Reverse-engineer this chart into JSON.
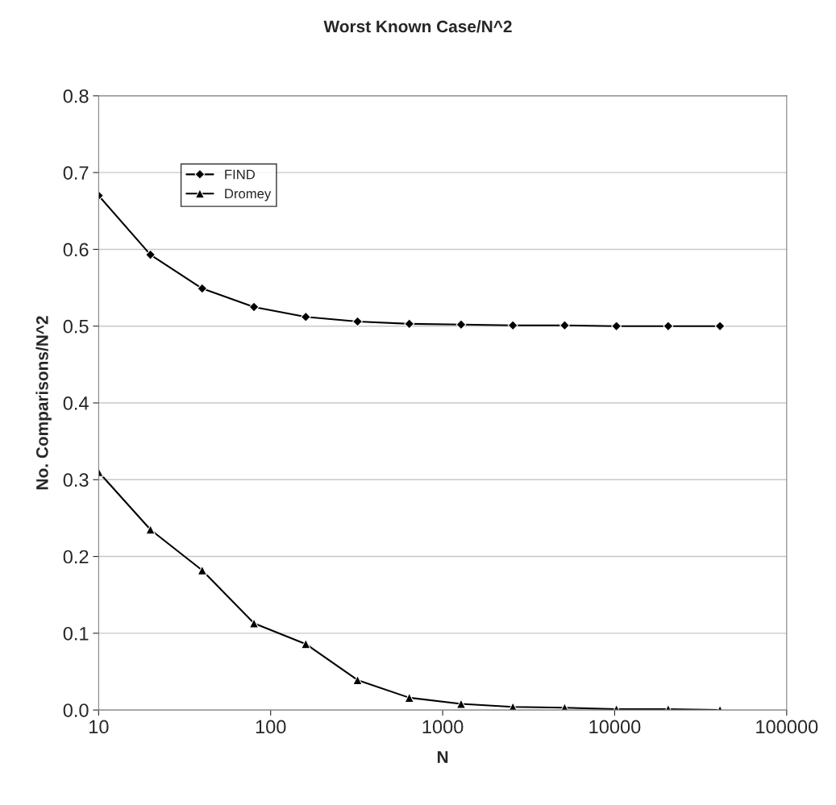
{
  "chart_data": {
    "type": "line",
    "title": "Worst Known Case/N^2",
    "xlabel": "N",
    "ylabel": "No. Comparisons/N^2",
    "x": [
      10,
      20,
      40,
      80,
      160,
      320,
      640,
      1280,
      2560,
      5120,
      10240,
      20480,
      40960
    ],
    "series": [
      {
        "name": "FIND",
        "color": "#000000",
        "marker": "diamond",
        "values": [
          0.67,
          0.593,
          0.549,
          0.525,
          0.512,
          0.506,
          0.503,
          0.502,
          0.501,
          0.501,
          0.5,
          0.5,
          0.5
        ]
      },
      {
        "name": "Dromey",
        "color": "#000000",
        "marker": "triangle",
        "values": [
          0.31,
          0.235,
          0.182,
          0.113,
          0.086,
          0.039,
          0.016,
          0.008,
          0.004,
          0.003,
          0.001,
          0.001,
          0.0
        ]
      }
    ],
    "log": "x",
    "xlim": [
      10,
      100000
    ],
    "xticks": [
      10,
      100,
      1000,
      10000,
      100000
    ],
    "ylim": [
      0,
      0.8
    ],
    "yticks": [
      {
        "value": 0,
        "label": "0.0"
      },
      0.1,
      0.2,
      0.3,
      0.4,
      0.5,
      0.6,
      0.7,
      0.8
    ],
    "grid": "y",
    "legend": "top left",
    "line_style": "solid"
  }
}
